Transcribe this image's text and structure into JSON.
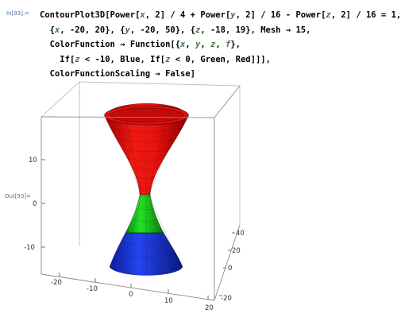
{
  "input_label": "In[93]:=",
  "output_label": "Out[93]=",
  "code": {
    "line1": {
      "fn": "ContourPlot3D",
      "b1": "[",
      "p1": "Power",
      "b2": "[",
      "x1": "x",
      "t1": ", 2] / 4 + ",
      "p2": "Power",
      "b3": "[",
      "y1": "y",
      "t2": ", 2] / 16 - ",
      "p3": "Power",
      "b4": "[",
      "z1": "z",
      "t3": ", 2] / 16 = 1,"
    },
    "line2": {
      "o1": "{",
      "x": "x",
      "r1": ", -20, 20}, {",
      "y": "y",
      "r2": ", -20, 50}, {",
      "z": "z",
      "r3": ", -18, 19}, ",
      "mesh": "Mesh",
      "arrow": " → ",
      "meshv": "15,"
    },
    "line3": {
      "cf": "ColorFunction",
      "arrow": " → ",
      "func": "Function",
      "o": "[{",
      "x": "x",
      "c1": ", ",
      "y": "y",
      "c2": ", ",
      "z": "z",
      "c3": ", ",
      "f": "f",
      "e": "},"
    },
    "line4": {
      "if1": "If",
      "b1": "[",
      "z": "z",
      "cond1": " < -10, ",
      "blue": "Blue",
      "c": ", ",
      "if2": "If",
      "b2": "[",
      "z2": "z",
      "cond2": " < 0, ",
      "green": "Green",
      "c2": ", ",
      "red": "Red",
      "e": "]]],"
    },
    "line5": {
      "cfs": "ColorFunctionScaling",
      "arrow": " → ",
      "val": "False",
      "e": "]"
    }
  },
  "plot": {
    "z_ticks": [
      "10",
      "0",
      "-10"
    ],
    "x_ticks": [
      "-20",
      "-10",
      "0",
      "10",
      "20"
    ],
    "y_ticks": [
      "40",
      "20",
      "0",
      "-20"
    ],
    "colors": {
      "red": "#e8120f",
      "green": "#19d119",
      "blue": "#1534e0",
      "box": "#9a9a9a"
    }
  }
}
